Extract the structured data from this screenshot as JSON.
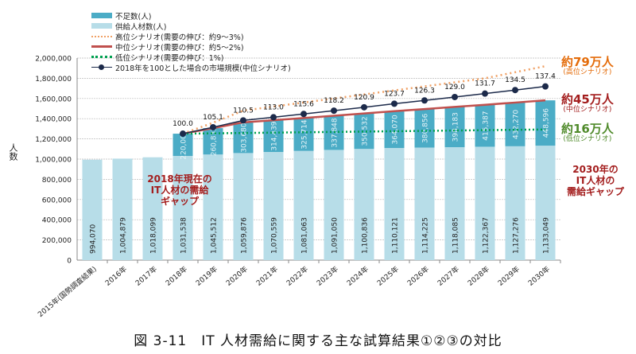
{
  "caption": "図 3-11　IT 人材需給に関する主な試算結果①②③の対比",
  "chart_data": {
    "type": "bar",
    "stacked": true,
    "ylabel": "人数",
    "ylim": [
      0,
      2000000
    ],
    "yticks": [
      0,
      200000,
      400000,
      600000,
      800000,
      1000000,
      1200000,
      1400000,
      1600000,
      1800000,
      2000000
    ],
    "ytick_labels": [
      "0",
      "200,000",
      "400,000",
      "600,000",
      "800,000",
      "1,000,000",
      "1,200,000",
      "1,400,000",
      "1,600,000",
      "1,800,000",
      "2,000,000"
    ],
    "grid": true,
    "legend_position": "top-left",
    "categories": [
      "2015年(国勢調査結果)",
      "2016年",
      "2017年",
      "2018年",
      "2019年",
      "2020年",
      "2021年",
      "2022年",
      "2023年",
      "2024年",
      "2025年",
      "2026年",
      "2027年",
      "2028年",
      "2029年",
      "2030年"
    ],
    "series": [
      {
        "name": "不足数(人)",
        "kind": "bar",
        "color": "#4bacc6",
        "values": [
          null,
          null,
          null,
          220000,
          260835,
          303680,
          314439,
          325714,
          337848,
          350532,
          364070,
          380856,
          398183,
          415387,
          432270,
          448596
        ],
        "labels": [
          null,
          null,
          null,
          "220,000",
          "260,835",
          "303,680",
          "314,439",
          "325,714",
          "337,848",
          "350,532",
          "364,070",
          "380,856",
          "398,183",
          "415,387",
          "432,270",
          "448,596"
        ]
      },
      {
        "name": "供給人材数(人)",
        "kind": "bar",
        "color": "#b7dde8",
        "values": [
          994070,
          1004879,
          1018099,
          1031538,
          1045512,
          1059876,
          1070559,
          1081063,
          1091050,
          1100836,
          1110121,
          1114225,
          1118085,
          1122367,
          1127276,
          1133049
        ],
        "labels": [
          "994,070",
          "1,004,879",
          "1,018,099",
          "1,031,538",
          "1,045,512",
          "1,059,876",
          "1,070,559",
          "1,081,063",
          "1,091,050",
          "1,100,836",
          "1,110,121",
          "1,114,225",
          "1,118,085",
          "1,122,367",
          "1,127,276",
          "1,133,049"
        ]
      },
      {
        "name": "高位シナリオ(需要の伸び：約9～3%)",
        "kind": "line-dotted",
        "color": "#f0a064",
        "values": [
          null,
          null,
          null,
          1251538,
          1360000,
          1480000,
          1520000,
          1560000,
          1600000,
          1640000,
          1680000,
          1720000,
          1760000,
          1800000,
          1860000,
          1920000
        ]
      },
      {
        "name": "中位シナリオ(需要の伸び：約5～2%)",
        "kind": "line",
        "color": "#c0504d",
        "values": [
          null,
          null,
          null,
          1251538,
          1306347,
          1363556,
          1384998,
          1406777,
          1428898,
          1451368,
          1474191,
          1495081,
          1516268,
          1537754,
          1559546,
          1581645
        ]
      },
      {
        "name": "低位シナリオ(需要の伸び：1%)",
        "kind": "line-dotted",
        "color": "#00a050",
        "values": [
          null,
          null,
          null,
          1251538,
          1255000,
          1258500,
          1262000,
          1265500,
          1269000,
          1272500,
          1276000,
          1279500,
          1283000,
          1286500,
          1290000,
          1293000
        ]
      },
      {
        "name": "2018年を100とした場合の市場規模(中位シナリオ)",
        "kind": "line-marker",
        "color": "#1c2a4a",
        "values": [
          null,
          null,
          null,
          100.0,
          105.1,
          110.5,
          113.0,
          115.6,
          118.2,
          120.9,
          123.7,
          126.3,
          129.0,
          131.7,
          134.5,
          137.4
        ],
        "labels": [
          null,
          null,
          null,
          "100.0",
          "105.1",
          "110.5",
          "113.0",
          "115.6",
          "118.2",
          "120.9",
          "123.7",
          "126.3",
          "129.0",
          "131.7",
          "134.5",
          "137.4"
        ]
      }
    ],
    "annotations": {
      "high": {
        "big": "約79万人",
        "small": "(高位シナリオ)",
        "color": "#e46c0a"
      },
      "mid": {
        "big": "約45万人",
        "small": "(中位シナリオ)",
        "color": "#a31d1d"
      },
      "low": {
        "big": "約16万人",
        "small": "(低位シナリオ)",
        "color": "#4f8a2a"
      },
      "gap2030": [
        "2030年の",
        "IT人材の",
        "需給ギャップ"
      ],
      "gap2018": [
        "2018年現在の",
        "IT人材の需給",
        "ギャップ"
      ]
    }
  }
}
